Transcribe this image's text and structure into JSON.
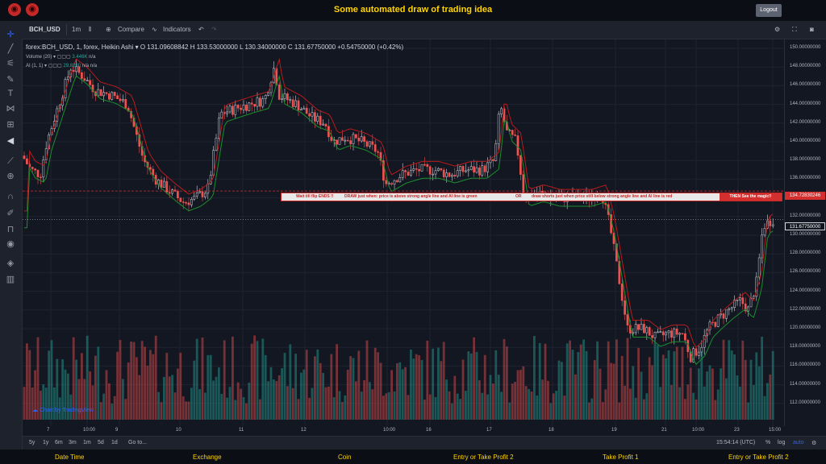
{
  "app": {
    "title": "Some automated draw of trading idea",
    "logout": "Logout"
  },
  "toolbar": {
    "symbol": "BCH_USD",
    "interval": "1m",
    "compare": "Compare",
    "indicators": "Indicators"
  },
  "legend": {
    "symbol_line": "forex:BCH_USD, 1, forex, Heikin Ashi",
    "open": "O 131.09608842",
    "high": "H 133.53000000",
    "low": "L 130.34000000",
    "close": "C 131.67750000",
    "change": "+0.54750000 (+0.42%)",
    "volume_label": "Volume (20)",
    "volume_value": "3.446K",
    "volume_na": "n/a",
    "ai_label": "AI (1, 1)",
    "ai_value": "29.8290",
    "ai_na": "n/a n/a"
  },
  "banner": {
    "part1": "Wait till flip ENDS !!",
    "part2": "DRAW just when: price is above strong angle line and AI line is green",
    "part3": "OR",
    "part4": "draw shorts just when price still below strong angle line and AI line is red",
    "cta": "THEN See the magic!!"
  },
  "price_axis": {
    "labels": [
      "150.00000000",
      "148.00000000",
      "146.00000000",
      "144.00000000",
      "142.00000000",
      "140.00000000",
      "138.00000000",
      "136.00000000",
      "134.00000000",
      "132.00000000",
      "130.00000000",
      "128.00000000",
      "126.00000000",
      "124.00000000",
      "122.00000000",
      "120.00000000",
      "118.00000000",
      "116.00000000",
      "114.00000000",
      "112.00000000"
    ],
    "alert_price": "134.72830246",
    "last_price": "131.67750000"
  },
  "time_axis": {
    "labels": [
      "7",
      "10:00",
      "9",
      "10",
      "11",
      "12",
      "10:00",
      "16",
      "17",
      "18",
      "19",
      "21",
      "10:00",
      "23",
      "15:00"
    ]
  },
  "watermark": "Chart by TradingView",
  "bottombar": {
    "ranges": [
      "5y",
      "1y",
      "6m",
      "3m",
      "1m",
      "5d",
      "1d"
    ],
    "goto": "Go to...",
    "time": "15:54:14 (UTC)",
    "percent": "%",
    "log": "log",
    "auto": "auto"
  },
  "footer": {
    "labels": [
      "Date Time",
      "Exchange",
      "Coin",
      "Entry or Take Profit 2",
      "Take Profit 1",
      "Entry or Take Profit 2"
    ]
  },
  "colors": {
    "up": "#26a69a",
    "down": "#ef5350",
    "ai_green": "#1b8e2c",
    "ai_red": "#b71c1c",
    "accent": "#ffd400"
  },
  "icons": [
    "crosshair-icon",
    "trendline-icon",
    "fib-icon",
    "brush-icon",
    "text-icon",
    "pattern-icon",
    "measure-icon",
    "arrow-left-icon",
    "ruler-icon",
    "zoom-icon",
    "magnet-icon",
    "lock-draw-icon",
    "lock-icon",
    "eye-icon",
    "layers-icon",
    "trash-icon"
  ]
}
